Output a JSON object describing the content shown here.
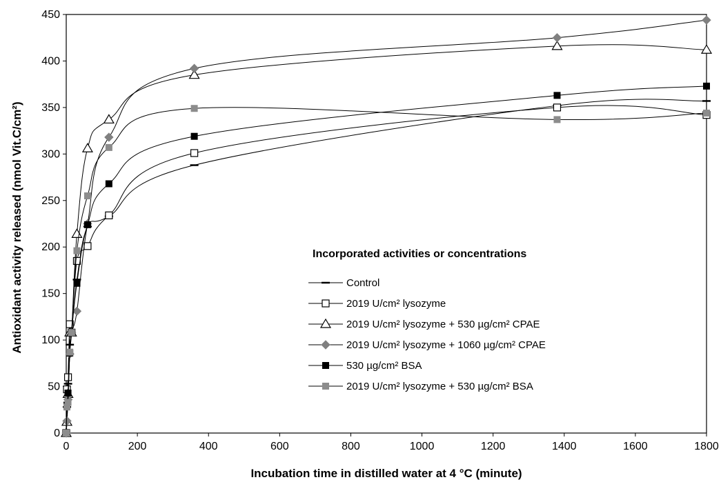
{
  "chart_data": {
    "type": "line",
    "xlabel": "Incubation time in distilled water at 4 °C (minute)",
    "ylabel": "Antioxidant activity released (nmol Vit.C/cm²)",
    "xlim": [
      0,
      1800
    ],
    "ylim": [
      0,
      450
    ],
    "x_ticks": [
      0,
      200,
      400,
      600,
      800,
      1000,
      1200,
      1400,
      1600,
      1800
    ],
    "y_ticks": [
      0,
      50,
      100,
      150,
      200,
      250,
      300,
      350,
      400,
      450
    ],
    "grid": false,
    "legend_position": "lower-right",
    "legend_title": "Incorporated activities or concentrations",
    "series": [
      {
        "name": "Control",
        "marker": "dash",
        "color": "#000000",
        "x": [
          0,
          2,
          5,
          10,
          15,
          30,
          60,
          120,
          360,
          1380,
          1800
        ],
        "y": [
          0,
          28,
          53,
          95,
          108,
          165,
          222,
          233,
          288,
          352,
          357
        ]
      },
      {
        "name": "2019 U/cm² lysozyme",
        "marker": "square-open",
        "color": "#000000",
        "x": [
          0,
          2,
          5,
          10,
          15,
          30,
          60,
          120,
          360,
          1380,
          1800
        ],
        "y": [
          0,
          47,
          60,
          117,
          108,
          185,
          201,
          234,
          301,
          350,
          342
        ]
      },
      {
        "name": "2019 U/cm² lysozyme + 530 µg/cm² CPAE",
        "marker": "triangle-open",
        "color": "#000000",
        "x": [
          0,
          2,
          5,
          10,
          15,
          30,
          60,
          120,
          360,
          1380,
          1800
        ],
        "y": [
          0,
          12,
          42,
          108,
          108,
          214,
          306,
          337,
          385,
          416,
          412
        ]
      },
      {
        "name": "2019 U/cm² lysozyme + 1060 µg/cm² CPAE",
        "marker": "diamond-filled",
        "color": "#808080",
        "x": [
          0,
          2,
          5,
          10,
          15,
          30,
          60,
          120,
          360,
          1380,
          1800
        ],
        "y": [
          0,
          13,
          36,
          85,
          108,
          131,
          225,
          318,
          392,
          425,
          444
        ]
      },
      {
        "name": "530 µg/cm² BSA",
        "marker": "square-filled",
        "color": "#000000",
        "x": [
          0,
          2,
          5,
          10,
          15,
          30,
          60,
          120,
          360,
          1380,
          1800
        ],
        "y": [
          0,
          30,
          43,
          86,
          108,
          161,
          224,
          268,
          319,
          363,
          373
        ]
      },
      {
        "name": "2019 U/cm² lysozyme + 530 µg/cm² BSA",
        "marker": "square-filled",
        "color": "#8c8c8c",
        "x": [
          0,
          2,
          5,
          10,
          15,
          30,
          60,
          120,
          360,
          1380,
          1800
        ],
        "y": [
          0,
          28,
          33,
          87,
          108,
          196,
          255,
          307,
          349,
          337,
          344
        ]
      }
    ]
  }
}
